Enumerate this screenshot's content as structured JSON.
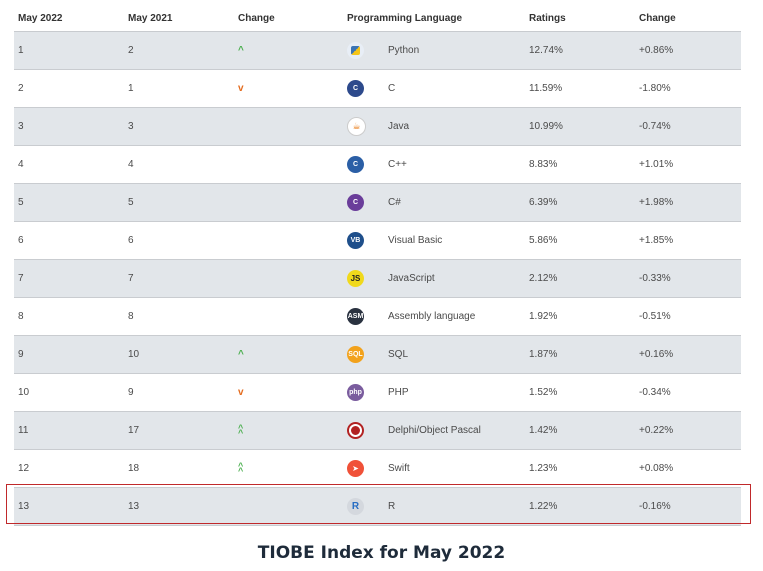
{
  "header": {
    "col_2022": "May 2022",
    "col_2021": "May 2021",
    "col_change": "Change",
    "col_language": "Programming Language",
    "col_ratings": "Ratings",
    "col_change2": "Change"
  },
  "rows": [
    {
      "rank2022": "1",
      "rank2021": "2",
      "trend": "up",
      "language": "Python",
      "ratings": "12.74%",
      "change": "+0.86%",
      "logo_text": "",
      "logo_color": "#3b74b5",
      "icon": "python-logo-icon"
    },
    {
      "rank2022": "2",
      "rank2021": "1",
      "trend": "down",
      "language": "C",
      "ratings": "11.59%",
      "change": "-1.80%",
      "logo_text": "C",
      "logo_color": "#2d4a8c",
      "icon": "c-logo-icon"
    },
    {
      "rank2022": "3",
      "rank2021": "3",
      "trend": "",
      "language": "Java",
      "ratings": "10.99%",
      "change": "-0.74%",
      "logo_text": "",
      "logo_color": "#ffffff",
      "icon": "java-logo-icon"
    },
    {
      "rank2022": "4",
      "rank2021": "4",
      "trend": "",
      "language": "C++",
      "ratings": "8.83%",
      "change": "+1.01%",
      "logo_text": "C",
      "logo_color": "#2b5fa6",
      "icon": "cpp-logo-icon"
    },
    {
      "rank2022": "5",
      "rank2021": "5",
      "trend": "",
      "language": "C#",
      "ratings": "6.39%",
      "change": "+1.98%",
      "logo_text": "C",
      "logo_color": "#6a3d9a",
      "icon": "csharp-logo-icon"
    },
    {
      "rank2022": "6",
      "rank2021": "6",
      "trend": "",
      "language": "Visual Basic",
      "ratings": "5.86%",
      "change": "+1.85%",
      "logo_text": "VB",
      "logo_color": "#1f4f8b",
      "icon": "visual-basic-logo-icon"
    },
    {
      "rank2022": "7",
      "rank2021": "7",
      "trend": "",
      "language": "JavaScript",
      "ratings": "2.12%",
      "change": "-0.33%",
      "logo_text": "JS",
      "logo_color": "#f0d91c",
      "icon": "javascript-logo-icon"
    },
    {
      "rank2022": "8",
      "rank2021": "8",
      "trend": "",
      "language": "Assembly language",
      "ratings": "1.92%",
      "change": "-0.51%",
      "logo_text": "ASM",
      "logo_color": "#2a3240",
      "icon": "assembly-logo-icon"
    },
    {
      "rank2022": "9",
      "rank2021": "10",
      "trend": "up",
      "language": "SQL",
      "ratings": "1.87%",
      "change": "+0.16%",
      "logo_text": "SQL",
      "logo_color": "#f2a21c",
      "icon": "sql-logo-icon"
    },
    {
      "rank2022": "10",
      "rank2021": "9",
      "trend": "down",
      "language": "PHP",
      "ratings": "1.52%",
      "change": "-0.34%",
      "logo_text": "php",
      "logo_color": "#7a5c9e",
      "icon": "php-logo-icon"
    },
    {
      "rank2022": "11",
      "rank2021": "17",
      "trend": "double-up",
      "language": "Delphi/Object Pascal",
      "ratings": "1.42%",
      "change": "+0.22%",
      "logo_text": "",
      "logo_color": "#b22222",
      "icon": "delphi-logo-icon"
    },
    {
      "rank2022": "12",
      "rank2021": "18",
      "trend": "double-up",
      "language": "Swift",
      "ratings": "1.23%",
      "change": "+0.08%",
      "logo_text": "",
      "logo_color": "#f05138",
      "icon": "swift-logo-icon"
    },
    {
      "rank2022": "13",
      "rank2021": "13",
      "trend": "",
      "language": "R",
      "ratings": "1.22%",
      "change": "-0.16%",
      "logo_text": "R",
      "logo_color": "#276dc3",
      "icon": "r-logo-icon"
    }
  ],
  "caption": "TIOBE Index for May 2022",
  "colors": {
    "row_shade": "#e2e6ea",
    "trend_up": "#4caf50",
    "trend_down": "#e46b1d",
    "highlight_border": "#c0292b"
  }
}
